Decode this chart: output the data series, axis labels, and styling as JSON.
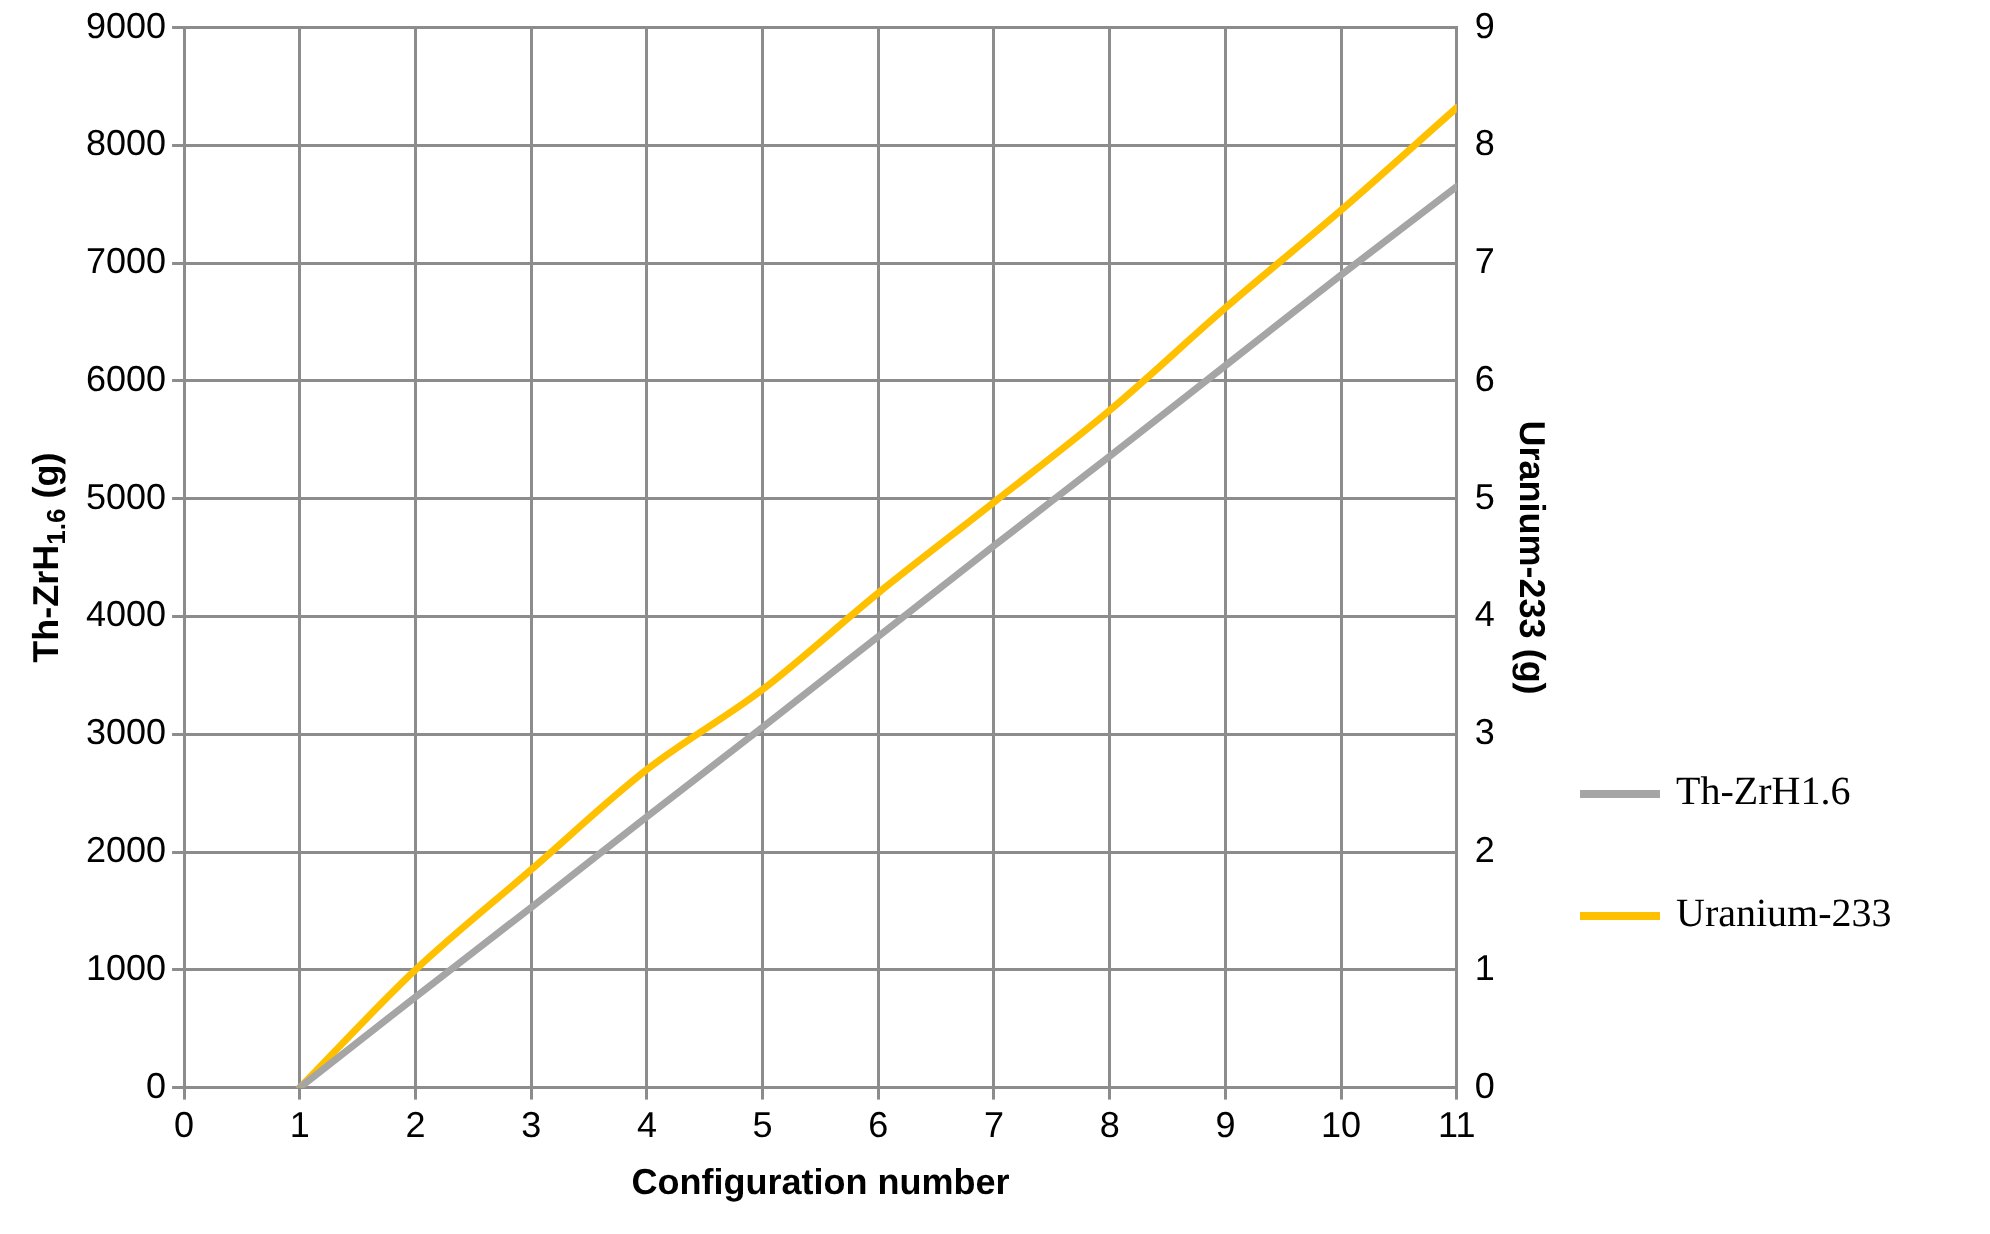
{
  "chart_data": {
    "type": "line",
    "xlabel": "Configuration number",
    "ylabel": "Th-ZrH$_{1.6}$ (g)",
    "y2label": "Uranium-233 (g)",
    "x": [
      1,
      2,
      3,
      4,
      5,
      6,
      7,
      8,
      9,
      10,
      11
    ],
    "series": [
      {
        "name": "Th-ZrH1.6",
        "color": "#a5a5a5",
        "values": [
          0,
          770,
          1530,
          2300,
          3060,
          3830,
          4600,
          5360,
          6130,
          6900,
          7650
        ]
      },
      {
        "name": "Uranium-233",
        "color": "#ffc000",
        "axis": "y2",
        "values": [
          0,
          1.0,
          1.85,
          2.7,
          3.38,
          4.2,
          4.97,
          5.75,
          6.62,
          7.45,
          8.32
        ]
      }
    ],
    "xlim": [
      0,
      11
    ],
    "xticks": [
      0,
      1,
      2,
      3,
      4,
      5,
      6,
      7,
      8,
      9,
      10,
      11
    ],
    "ylim": [
      0,
      9000
    ],
    "yticks": [
      0,
      1000,
      2000,
      3000,
      4000,
      5000,
      6000,
      7000,
      8000,
      9000
    ],
    "y2lim": [
      0,
      9
    ],
    "y2ticks": [
      0,
      1,
      2,
      3,
      4,
      5,
      6,
      7,
      8,
      9
    ],
    "grid": true,
    "legend": "right",
    "marker": "none",
    "line_style": "solid"
  }
}
